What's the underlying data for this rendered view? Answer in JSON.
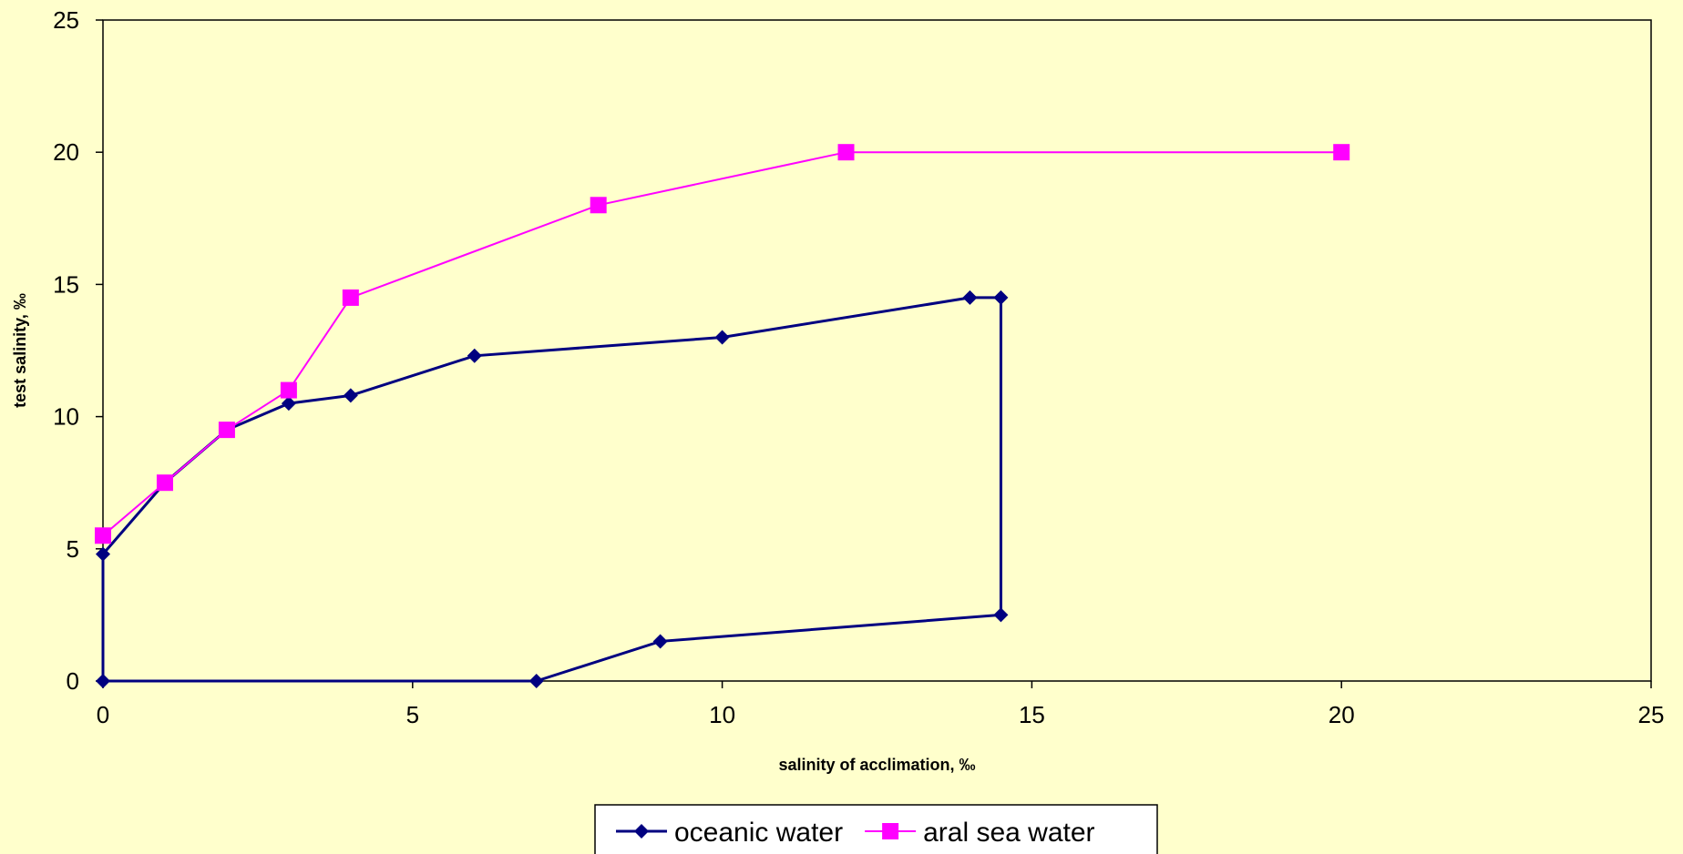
{
  "chart_data": {
    "type": "line",
    "title": "",
    "xlabel": "salinity of acclimation, ‰",
    "ylabel": "test salinity, ‰",
    "xlim": [
      0,
      25
    ],
    "ylim": [
      0,
      25
    ],
    "x_ticks": [
      "0",
      "5",
      "10",
      "15",
      "20",
      "25"
    ],
    "y_ticks": [
      "0",
      "5",
      "10",
      "15",
      "20",
      "25"
    ],
    "grid": false,
    "legend_position": "bottom",
    "series": [
      {
        "name": "oceanic water",
        "color": "#000080",
        "marker": "diamond",
        "points": [
          [
            7,
            0
          ],
          [
            0,
            0
          ],
          [
            0,
            4.8
          ],
          [
            1,
            7.5
          ],
          [
            2,
            9.5
          ],
          [
            3,
            10.5
          ],
          [
            4,
            10.8
          ],
          [
            6,
            12.3
          ],
          [
            10,
            13
          ],
          [
            14,
            14.5
          ],
          [
            14.5,
            14.5
          ],
          [
            14.5,
            2.5
          ],
          [
            9,
            1.5
          ],
          [
            7,
            0
          ]
        ]
      },
      {
        "name": "aral sea water",
        "color": "#ff00ff",
        "marker": "square",
        "points": [
          [
            0,
            5.5
          ],
          [
            1,
            7.5
          ],
          [
            2,
            9.5
          ],
          [
            3,
            11
          ],
          [
            4,
            14.5
          ],
          [
            8,
            18
          ],
          [
            12,
            20
          ],
          [
            20,
            20
          ]
        ]
      }
    ]
  }
}
